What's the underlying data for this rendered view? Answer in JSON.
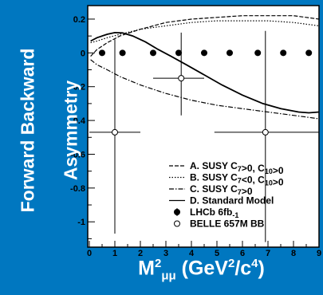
{
  "chart_data": {
    "type": "line",
    "title": "",
    "ylabel_lines": [
      "Forward Backward",
      "Asymmetry"
    ],
    "xlabel": {
      "base": "M",
      "sup": "2",
      "sub": "μμ",
      "units_pre": " (GeV",
      "units_sup1": "2",
      "units_mid": "/c",
      "units_sup2": "4",
      "units_post": ")"
    },
    "xlim": [
      0,
      9
    ],
    "ylim": [
      -1.15,
      0.28
    ],
    "xticks": [
      0,
      1,
      2,
      3,
      4,
      5,
      6,
      7,
      8,
      9
    ],
    "yticks": [
      0.2,
      0,
      -0.2,
      -0.4,
      -0.6,
      -0.8,
      -1
    ],
    "ytick_labels": [
      "0.2",
      "0",
      "-0.2",
      "-0.4",
      "-0.6",
      "-0.8",
      "-1"
    ],
    "series": [
      {
        "name": "A. SUSY C7>0, C10>0",
        "style": "dashed",
        "x": [
          0.05,
          0.3,
          0.7,
          1.2,
          2,
          3,
          4,
          5,
          6,
          7,
          8,
          8.5,
          9
        ],
        "y": [
          -0.02,
          0.02,
          0.06,
          0.1,
          0.14,
          0.18,
          0.2,
          0.21,
          0.22,
          0.22,
          0.22,
          0.21,
          0.2
        ]
      },
      {
        "name": "B. SUSY C7<0, C10>0",
        "style": "dotted",
        "x": [
          0.05,
          0.3,
          0.7,
          1.2,
          2,
          3,
          4,
          5,
          6,
          7,
          8,
          8.5,
          9
        ],
        "y": [
          0.06,
          0.07,
          0.09,
          0.11,
          0.14,
          0.16,
          0.18,
          0.19,
          0.19,
          0.19,
          0.18,
          0.17,
          0.16
        ]
      },
      {
        "name": "C. SUSY C7>0",
        "style": "dashdot",
        "x": [
          0.05,
          0.3,
          0.7,
          1.2,
          2,
          3,
          4,
          5,
          6,
          7,
          8,
          8.5,
          9
        ],
        "y": [
          -0.04,
          -0.07,
          -0.1,
          -0.14,
          -0.19,
          -0.24,
          -0.28,
          -0.31,
          -0.33,
          -0.35,
          -0.37,
          -0.38,
          -0.39
        ]
      },
      {
        "name": "D. Standard Model",
        "style": "solid",
        "x": [
          0.05,
          0.3,
          0.7,
          1.0,
          1.3,
          1.7,
          2.2,
          2.7,
          3.2,
          3.8,
          4.5,
          5.2,
          6,
          6.8,
          7.5,
          8.2,
          8.6,
          9
        ],
        "y": [
          0.07,
          0.09,
          0.11,
          0.12,
          0.118,
          0.1,
          0.065,
          0.02,
          -0.02,
          -0.07,
          -0.13,
          -0.19,
          -0.25,
          -0.3,
          -0.33,
          -0.35,
          -0.355,
          -0.35
        ]
      },
      {
        "name": "LHCb 6fb-1",
        "style": "filled-marker",
        "x": [
          0.5,
          1.3,
          2.5,
          3.5,
          4.5,
          5.5,
          6.6,
          7.6,
          8.6
        ],
        "y": [
          0,
          0,
          0,
          0,
          0,
          0,
          0,
          0,
          0
        ]
      },
      {
        "name": "BELLE 657M BB",
        "style": "open-marker",
        "x": [
          1.0,
          3.6,
          6.9
        ],
        "y": [
          -0.47,
          -0.15,
          -0.47
        ],
        "xerr_low": [
          1.0,
          1.1,
          2.0
        ],
        "xerr_high": [
          1.0,
          0.9,
          2.1
        ],
        "yerr_low": [
          0.6,
          0.22,
          0.65
        ],
        "yerr_high": [
          0.55,
          0.27,
          0.6
        ]
      }
    ],
    "legend": {
      "placement": "bottom-right",
      "entries": [
        {
          "marker": "dashed",
          "parts": [
            [
              "A.  SUSY C",
              ""
            ],
            [
              "7",
              "s"
            ],
            [
              ">0, C",
              ""
            ],
            [
              "10",
              "s"
            ],
            [
              ">0",
              ""
            ]
          ]
        },
        {
          "marker": "dotted",
          "parts": [
            [
              "B.  SUSY C",
              ""
            ],
            [
              "7",
              "s"
            ],
            [
              "<0, C",
              ""
            ],
            [
              "10",
              "s"
            ],
            [
              ">0",
              ""
            ]
          ]
        },
        {
          "marker": "dashdot",
          "parts": [
            [
              "C.  SUSY C",
              ""
            ],
            [
              "7",
              "s"
            ],
            [
              ">0",
              ""
            ]
          ]
        },
        {
          "marker": "solid",
          "parts": [
            [
              "D.  Standard Model",
              ""
            ]
          ]
        },
        {
          "marker": "filled-marker",
          "parts": [
            [
              "LHCb 6fb",
              ""
            ],
            [
              "-1",
              "s"
            ]
          ]
        },
        {
          "marker": "open-marker",
          "parts": [
            [
              "BELLE 657M BB",
              ""
            ]
          ]
        }
      ]
    }
  }
}
